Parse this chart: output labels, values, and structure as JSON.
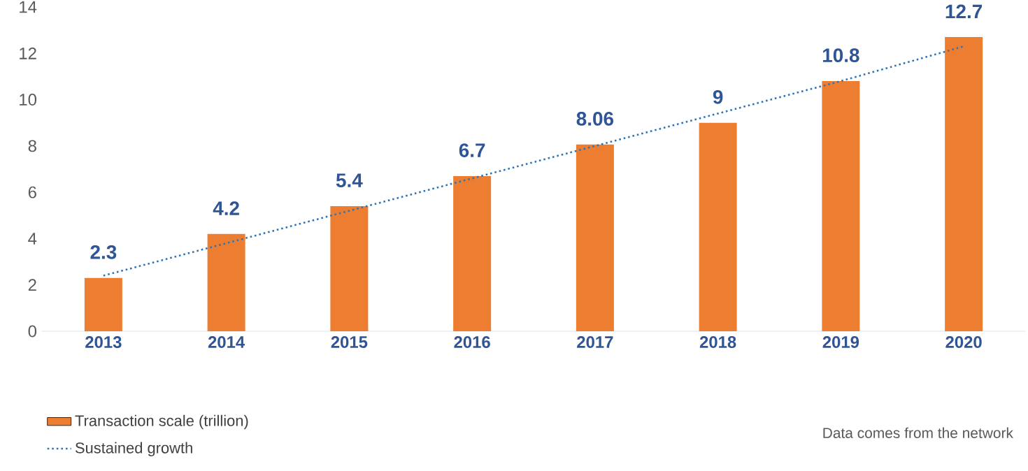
{
  "chart_data": {
    "type": "bar",
    "categories": [
      "2013",
      "2014",
      "2015",
      "2016",
      "2017",
      "2018",
      "2019",
      "2020"
    ],
    "series": [
      {
        "name": "Transaction scale (trillion)",
        "color": "#ed7d31",
        "values": [
          2.3,
          4.2,
          5.4,
          6.7,
          8.06,
          9,
          10.8,
          12.7
        ],
        "value_labels": [
          "2.3",
          "4.2",
          "5.4",
          "6.7",
          "8.06",
          "9",
          "10.8",
          "12.7"
        ]
      },
      {
        "name": "Sustained growth",
        "type": "line",
        "color": "#2e75b6",
        "values": [
          2.4,
          3.8,
          5.2,
          6.6,
          8.0,
          9.4,
          10.8,
          12.3
        ],
        "line_style": "dotted",
        "marker": "none"
      }
    ],
    "ylim": [
      0,
      14
    ],
    "yticks": [
      0,
      2,
      4,
      6,
      8,
      10,
      12,
      14
    ],
    "grid": false,
    "legend": "bottom left",
    "annotations": [
      "Data comes from the network"
    ]
  }
}
